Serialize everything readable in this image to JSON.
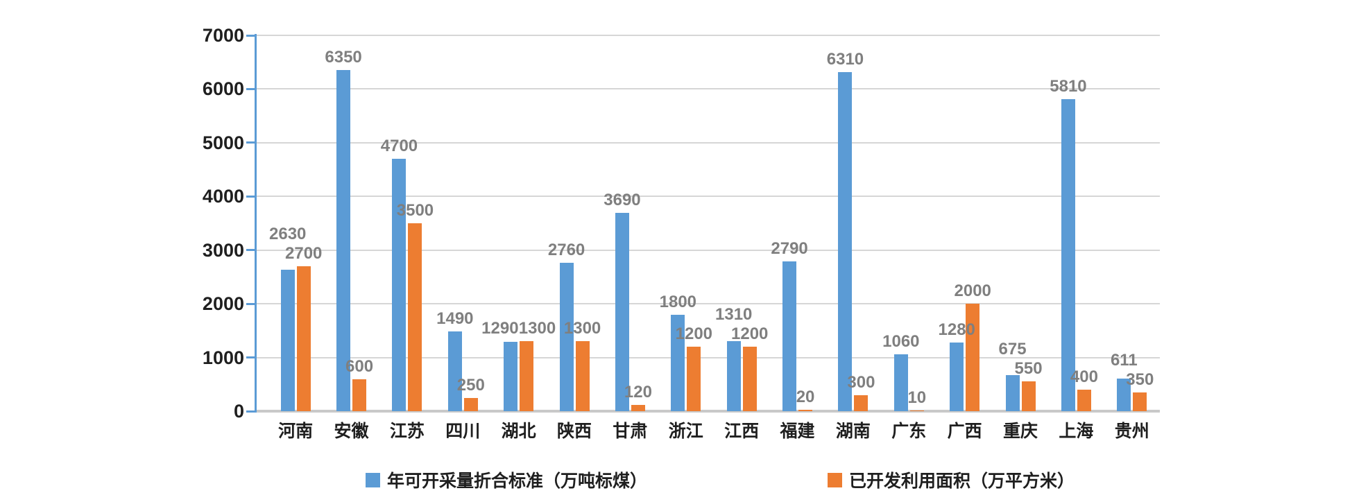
{
  "chart_data": {
    "type": "bar",
    "title": "",
    "xlabel": "",
    "ylabel": "",
    "categories": [
      "河南",
      "安徽",
      "江苏",
      "四川",
      "湖北",
      "陕西",
      "甘肃",
      "浙江",
      "江西",
      "福建",
      "湖南",
      "广东",
      "广西",
      "重庆",
      "上海",
      "贵州"
    ],
    "series": [
      {
        "name": "年可开采量折合标准（万吨标煤）",
        "color": "#5b9bd5",
        "values": [
          2630,
          6350,
          4700,
          1490,
          1290,
          2760,
          3690,
          1800,
          1310,
          2790,
          6310,
          1060,
          1280,
          675,
          5810,
          611
        ]
      },
      {
        "name": "已开发利用面积（万平方米）",
        "color": "#ed7d31",
        "values": [
          2700,
          600,
          3500,
          250,
          1300,
          1300,
          120,
          1200,
          1200,
          20,
          300,
          10,
          2000,
          550,
          400,
          350
        ]
      }
    ],
    "ylim": [
      0,
      7000
    ],
    "yticks": [
      0,
      1000,
      2000,
      3000,
      4000,
      5000,
      6000,
      7000
    ],
    "grid": true,
    "data_labels": true,
    "legend_position": "bottom"
  },
  "colors": {
    "series1": "#5b9bd5",
    "series2": "#ed7d31",
    "gridline": "#d6d6d6",
    "x_axis_line": "#c9c9c9",
    "y_axis_line": "#5b9bd5",
    "tick_label": "#1f1f1f",
    "data_label": "#7f7f7f",
    "background": "#ffffff"
  }
}
